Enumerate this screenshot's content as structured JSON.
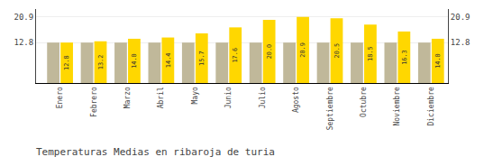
{
  "chart_data": {
    "type": "bar",
    "title": "Temperaturas Medias en ribaroja de turia",
    "categories": [
      "Enero",
      "Febrero",
      "Marzo",
      "Abril",
      "Mayo",
      "Junio",
      "Julio",
      "Agosto",
      "Septiembre",
      "Octubre",
      "Noviembre",
      "Diciembre"
    ],
    "series": [
      {
        "color": "#C0B89A",
        "values": [
          12.8,
          12.8,
          12.8,
          12.8,
          12.8,
          12.8,
          12.8,
          12.8,
          12.8,
          12.8,
          12.8,
          12.8
        ]
      },
      {
        "color": "#FFD700",
        "values": [
          12.8,
          13.2,
          14.0,
          14.4,
          15.7,
          17.6,
          20.0,
          20.9,
          20.5,
          18.5,
          16.3,
          14.0
        ],
        "value_labels": [
          "12.8",
          "13.2",
          "14.0",
          "14.4",
          "15.7",
          "17.6",
          "20.0",
          "20.9",
          "20.5",
          "18.5",
          "16.3",
          "14.0"
        ],
        "data_labels": true
      }
    ],
    "ylim": [
      0,
      23.408
    ],
    "yticks": [
      12.8,
      20.9
    ],
    "y2lim": [
      0,
      23.408
    ],
    "y2ticks": [
      12.8,
      20.9
    ],
    "grid": true
  }
}
